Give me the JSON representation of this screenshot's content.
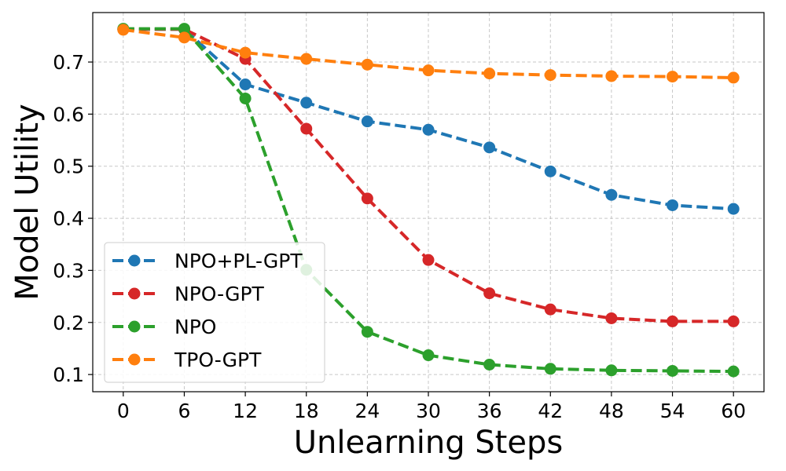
{
  "chart_data": {
    "type": "line",
    "title": "",
    "xlabel": "Unlearning Steps",
    "ylabel": "Model Utility",
    "x": [
      0,
      6,
      12,
      18,
      24,
      30,
      36,
      42,
      48,
      54,
      60
    ],
    "xticks": [
      "0",
      "6",
      "12",
      "18",
      "24",
      "30",
      "36",
      "42",
      "48",
      "54",
      "60"
    ],
    "yticks": [
      "0.1",
      "0.2",
      "0.3",
      "0.4",
      "0.5",
      "0.6",
      "0.7"
    ],
    "xlim": [
      -3,
      63
    ],
    "ylim": [
      0.067,
      0.795
    ],
    "grid": true,
    "legend_position": "lower-left",
    "series": [
      {
        "name": "NPO+PL-GPT",
        "color": "#1f77b4",
        "values": [
          0.763,
          0.763,
          0.657,
          0.622,
          0.586,
          0.57,
          0.536,
          0.49,
          0.445,
          0.425,
          0.418
        ]
      },
      {
        "name": "NPO-GPT",
        "color": "#d62728",
        "values": [
          0.763,
          0.763,
          0.706,
          0.572,
          0.438,
          0.32,
          0.256,
          0.225,
          0.208,
          0.202,
          0.202
        ]
      },
      {
        "name": "NPO",
        "color": "#2ca02c",
        "values": [
          0.764,
          0.764,
          0.63,
          0.301,
          0.182,
          0.137,
          0.119,
          0.111,
          0.108,
          0.107,
          0.106
        ]
      },
      {
        "name": "TPO-GPT",
        "color": "#ff7f0e",
        "values": [
          0.762,
          0.747,
          0.718,
          0.706,
          0.695,
          0.684,
          0.678,
          0.675,
          0.673,
          0.672,
          0.67
        ]
      }
    ]
  }
}
